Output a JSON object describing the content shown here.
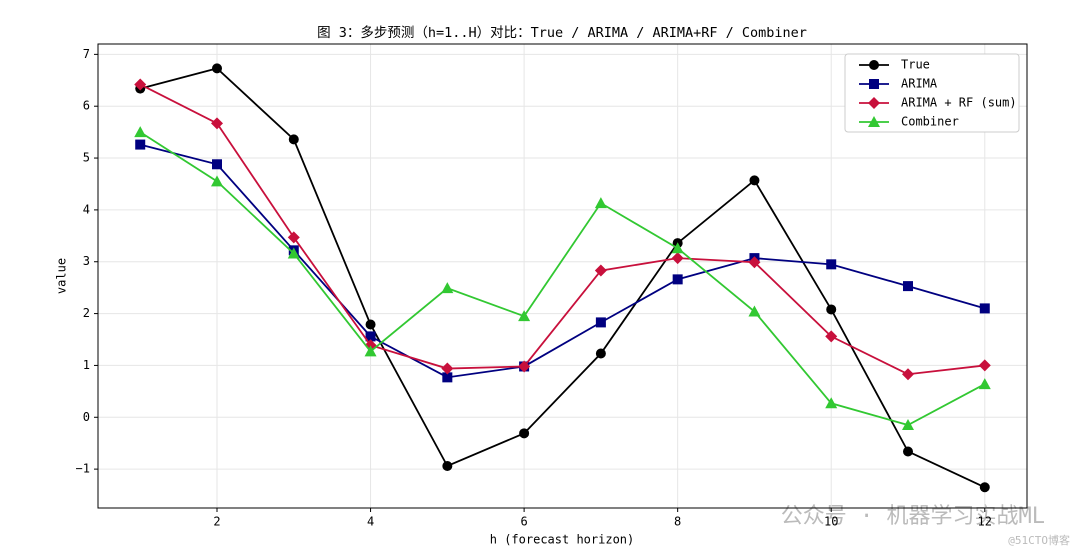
{
  "chart_data": {
    "type": "line",
    "title": "图 3：多步预测（h=1..H）对比：True / ARIMA / ARIMA+RF / Combiner",
    "x_label": "h (forecast horizon)",
    "y_label": "value",
    "x": [
      1,
      2,
      3,
      4,
      5,
      6,
      7,
      8,
      9,
      10,
      11,
      12
    ],
    "series": [
      {
        "name": "True",
        "color": "#000000",
        "marker": "circle",
        "values": [
          6.34,
          6.73,
          5.36,
          1.79,
          -0.94,
          -0.31,
          1.23,
          3.36,
          4.57,
          2.08,
          -0.66,
          -1.35
        ]
      },
      {
        "name": "ARIMA",
        "color": "#000080",
        "marker": "square",
        "values": [
          5.26,
          4.88,
          3.22,
          1.56,
          0.77,
          0.98,
          1.83,
          2.66,
          3.07,
          2.95,
          2.53,
          2.1
        ]
      },
      {
        "name": "ARIMA + RF (sum)",
        "color": "#c8103c",
        "marker": "diamond",
        "values": [
          6.42,
          5.67,
          3.47,
          1.39,
          0.94,
          0.98,
          2.83,
          3.07,
          2.99,
          1.56,
          0.83,
          1.0
        ]
      },
      {
        "name": "Combiner",
        "color": "#32c832",
        "marker": "triangle",
        "values": [
          5.5,
          4.55,
          3.16,
          1.27,
          2.49,
          1.95,
          4.13,
          3.26,
          2.04,
          0.27,
          -0.15,
          0.64
        ]
      }
    ],
    "xlim": [
      0.45,
      12.55
    ],
    "ylim": [
      -1.75,
      7.2
    ],
    "xticks": [
      2,
      4,
      6,
      8,
      10,
      12
    ],
    "yticks": [
      {
        "value": -1,
        "label": "−1"
      },
      0,
      1,
      2,
      3,
      4,
      5,
      6,
      7
    ],
    "grid": true,
    "legend": "upper right",
    "watermark": "公众号 · 机器学习实战ML",
    "credit": "@51CTO博客"
  }
}
